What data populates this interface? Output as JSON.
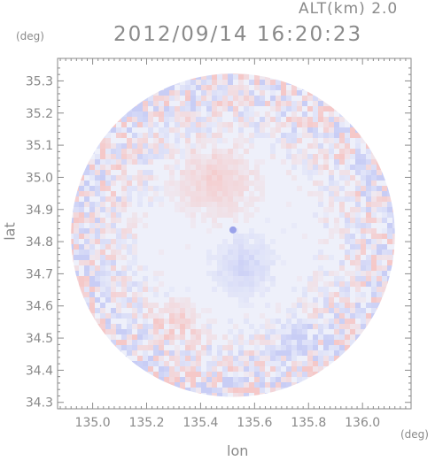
{
  "header": {
    "altitude": "ALT(km) 2.0",
    "datetime": "2012/09/14 16:20:23"
  },
  "colors": {
    "positive": "#f5c8c8",
    "negative": "#c8cdf5",
    "neutral": "#eef0fa",
    "axis": "#8a8a8a"
  },
  "chart_data": {
    "type": "heatmap",
    "title": "2012/09/14 16:20:23",
    "subtitle": "ALT(km) 2.0",
    "xlabel": "lon",
    "ylabel": "lat",
    "x_unit": "(deg)",
    "y_unit": "(deg)",
    "xlim": [
      134.87,
      136.18
    ],
    "ylim": [
      34.28,
      35.37
    ],
    "xticks": [
      135.0,
      135.2,
      135.4,
      135.6,
      135.8,
      136.0
    ],
    "xtick_labels": [
      "135.0",
      "135.2",
      "135.4",
      "135.6",
      "135.8",
      "136.0"
    ],
    "yticks": [
      34.3,
      34.4,
      34.5,
      34.6,
      34.7,
      34.8,
      34.9,
      35.0,
      35.1,
      35.2,
      35.3
    ],
    "ytick_labels": [
      "34.3",
      "34.4",
      "34.5",
      "34.6",
      "34.7",
      "34.8",
      "34.9",
      "35.0",
      "35.1",
      "35.2",
      "35.3"
    ],
    "grid": false,
    "radar_center": [
      135.52,
      34.82
    ],
    "radar_extent_deg": 0.6,
    "scatter_near_edge": true,
    "regions": [
      {
        "lon": 135.45,
        "lat": 35.0,
        "r": 0.2,
        "sign": "positive"
      },
      {
        "lon": 135.55,
        "lat": 34.73,
        "r": 0.15,
        "sign": "negative"
      },
      {
        "lon": 135.75,
        "lat": 34.5,
        "r": 0.12,
        "sign": "negative"
      },
      {
        "lon": 135.3,
        "lat": 34.55,
        "r": 0.12,
        "sign": "positive"
      }
    ]
  }
}
